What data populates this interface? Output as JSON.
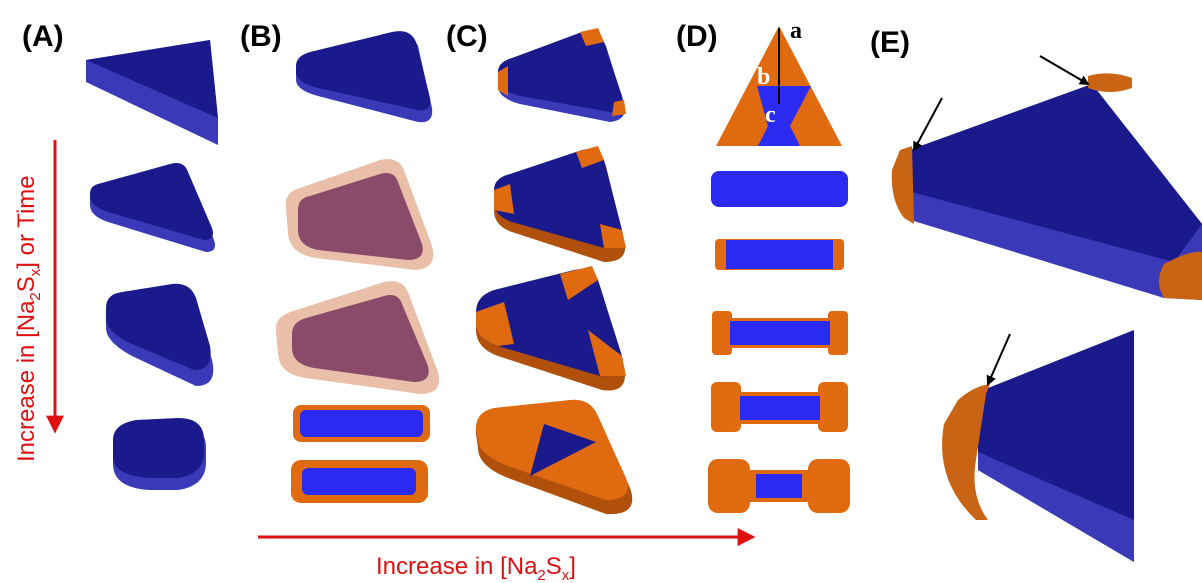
{
  "panels": {
    "A": {
      "label": "(A)"
    },
    "B": {
      "label": "(B)"
    },
    "C": {
      "label": "(C)"
    },
    "D": {
      "label": "(D)",
      "schematic_labels": [
        "a",
        "b",
        "c"
      ]
    },
    "E": {
      "label": "(E)"
    }
  },
  "axes": {
    "vertical": {
      "prefix": "Increase in [Na",
      "sub1": "2",
      "mid": "S",
      "sub2": "x",
      "suffix": "] or Time"
    },
    "horizontal": {
      "prefix": "Increase in [Na",
      "sub1": "2",
      "mid": "S",
      "sub2": "x",
      "suffix": "]"
    }
  },
  "colors": {
    "core_blue_top": "#1a1a8c",
    "core_blue_side": "#3a3ab8",
    "flat_blue": "#2a2af0",
    "shell_orange": "#e06a10",
    "shell_orange_dark": "#b0500a",
    "shell_pink": "#e8b8a0",
    "core_mauve": "#8a4a6a",
    "arrow_red": "#e01010",
    "arrow_black": "#000000"
  }
}
